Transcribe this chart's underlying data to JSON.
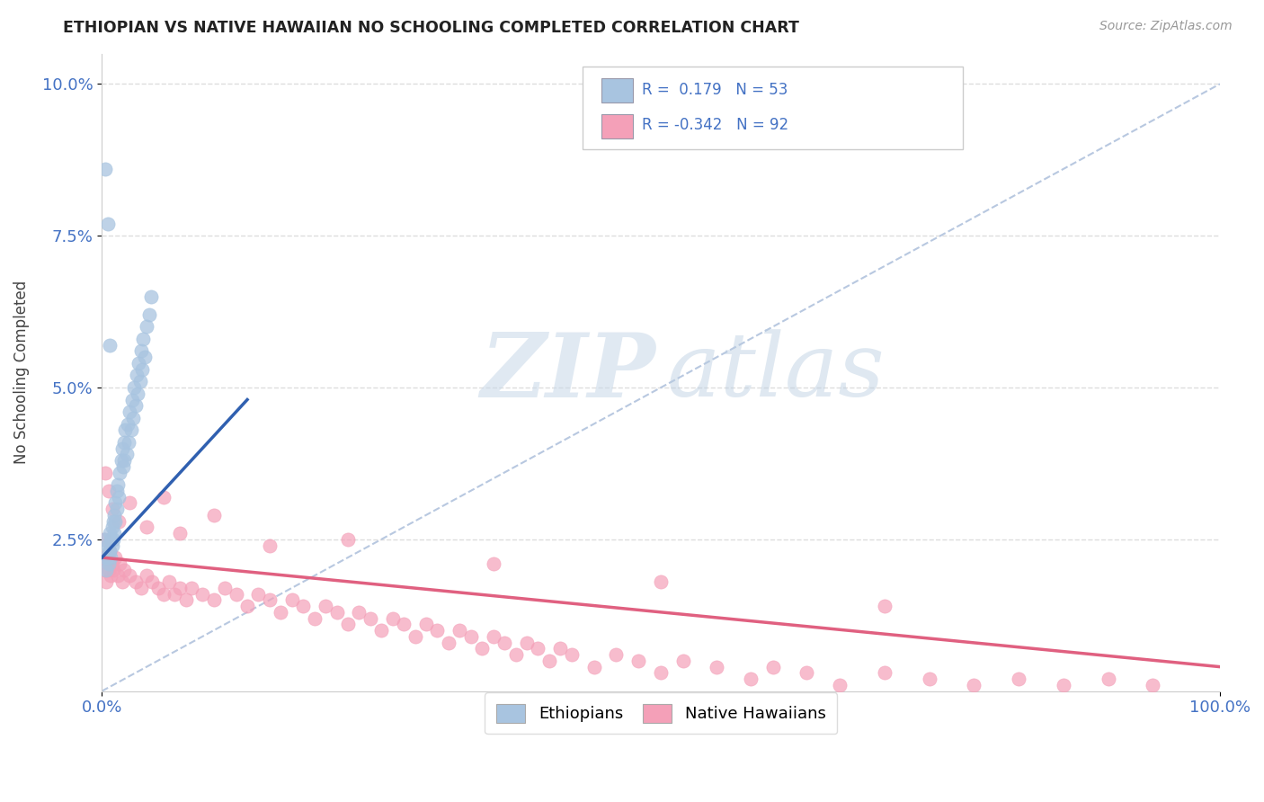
{
  "title": "ETHIOPIAN VS NATIVE HAWAIIAN NO SCHOOLING COMPLETED CORRELATION CHART",
  "source": "Source: ZipAtlas.com",
  "ylabel": "No Schooling Completed",
  "xlim": [
    0,
    1.0
  ],
  "ylim": [
    0,
    0.105
  ],
  "ethiopian_R": 0.179,
  "ethiopian_N": 53,
  "hawaiian_R": -0.342,
  "hawaiian_N": 92,
  "ethiopian_color": "#a8c4e0",
  "hawaiian_color": "#f4a0b8",
  "ethiopian_line_color": "#3060b0",
  "hawaiian_line_color": "#e06080",
  "diagonal_color": "#b8c8e0",
  "background_color": "#ffffff",
  "legend_color": "#4472c4",
  "eth_scatter": {
    "x": [
      0.002,
      0.003,
      0.004,
      0.005,
      0.005,
      0.006,
      0.006,
      0.007,
      0.007,
      0.008,
      0.008,
      0.009,
      0.009,
      0.01,
      0.01,
      0.011,
      0.011,
      0.012,
      0.012,
      0.013,
      0.013,
      0.014,
      0.015,
      0.016,
      0.017,
      0.018,
      0.019,
      0.02,
      0.02,
      0.021,
      0.022,
      0.023,
      0.024,
      0.025,
      0.026,
      0.027,
      0.028,
      0.029,
      0.03,
      0.031,
      0.032,
      0.033,
      0.034,
      0.035,
      0.036,
      0.037,
      0.038,
      0.04,
      0.042,
      0.044,
      0.003,
      0.005,
      0.007
    ],
    "y": [
      0.025,
      0.022,
      0.02,
      0.024,
      0.022,
      0.023,
      0.021,
      0.026,
      0.023,
      0.025,
      0.022,
      0.027,
      0.024,
      0.028,
      0.025,
      0.029,
      0.026,
      0.031,
      0.028,
      0.033,
      0.03,
      0.034,
      0.032,
      0.036,
      0.038,
      0.04,
      0.037,
      0.041,
      0.038,
      0.043,
      0.039,
      0.044,
      0.041,
      0.046,
      0.043,
      0.048,
      0.045,
      0.05,
      0.047,
      0.052,
      0.049,
      0.054,
      0.051,
      0.056,
      0.053,
      0.058,
      0.055,
      0.06,
      0.062,
      0.065,
      0.086,
      0.077,
      0.057
    ]
  },
  "haw_scatter": {
    "x": [
      0.001,
      0.002,
      0.003,
      0.004,
      0.005,
      0.006,
      0.007,
      0.008,
      0.009,
      0.01,
      0.012,
      0.014,
      0.016,
      0.018,
      0.02,
      0.025,
      0.03,
      0.035,
      0.04,
      0.045,
      0.05,
      0.055,
      0.06,
      0.065,
      0.07,
      0.075,
      0.08,
      0.09,
      0.1,
      0.11,
      0.12,
      0.13,
      0.14,
      0.15,
      0.16,
      0.17,
      0.18,
      0.19,
      0.2,
      0.21,
      0.22,
      0.23,
      0.24,
      0.25,
      0.26,
      0.27,
      0.28,
      0.29,
      0.3,
      0.31,
      0.32,
      0.33,
      0.34,
      0.35,
      0.36,
      0.37,
      0.38,
      0.39,
      0.4,
      0.41,
      0.42,
      0.44,
      0.46,
      0.48,
      0.5,
      0.52,
      0.55,
      0.58,
      0.6,
      0.63,
      0.66,
      0.7,
      0.74,
      0.78,
      0.82,
      0.86,
      0.9,
      0.94,
      0.003,
      0.006,
      0.009,
      0.015,
      0.025,
      0.04,
      0.055,
      0.07,
      0.1,
      0.15,
      0.22,
      0.35,
      0.5,
      0.7
    ],
    "y": [
      0.022,
      0.025,
      0.02,
      0.018,
      0.022,
      0.02,
      0.023,
      0.019,
      0.021,
      0.02,
      0.022,
      0.019,
      0.021,
      0.018,
      0.02,
      0.019,
      0.018,
      0.017,
      0.019,
      0.018,
      0.017,
      0.016,
      0.018,
      0.016,
      0.017,
      0.015,
      0.017,
      0.016,
      0.015,
      0.017,
      0.016,
      0.014,
      0.016,
      0.015,
      0.013,
      0.015,
      0.014,
      0.012,
      0.014,
      0.013,
      0.011,
      0.013,
      0.012,
      0.01,
      0.012,
      0.011,
      0.009,
      0.011,
      0.01,
      0.008,
      0.01,
      0.009,
      0.007,
      0.009,
      0.008,
      0.006,
      0.008,
      0.007,
      0.005,
      0.007,
      0.006,
      0.004,
      0.006,
      0.005,
      0.003,
      0.005,
      0.004,
      0.002,
      0.004,
      0.003,
      0.001,
      0.003,
      0.002,
      0.001,
      0.002,
      0.001,
      0.002,
      0.001,
      0.036,
      0.033,
      0.03,
      0.028,
      0.031,
      0.027,
      0.032,
      0.026,
      0.029,
      0.024,
      0.025,
      0.021,
      0.018,
      0.014
    ]
  },
  "eth_line": {
    "x0": 0.0,
    "x1": 0.13,
    "y0": 0.022,
    "y1": 0.048
  },
  "haw_line": {
    "x0": 0.0,
    "x1": 1.0,
    "y0": 0.022,
    "y1": 0.004
  },
  "diagonal_line": {
    "x0": 0.0,
    "x1": 1.0,
    "y0": 0.0,
    "y1": 0.1
  }
}
